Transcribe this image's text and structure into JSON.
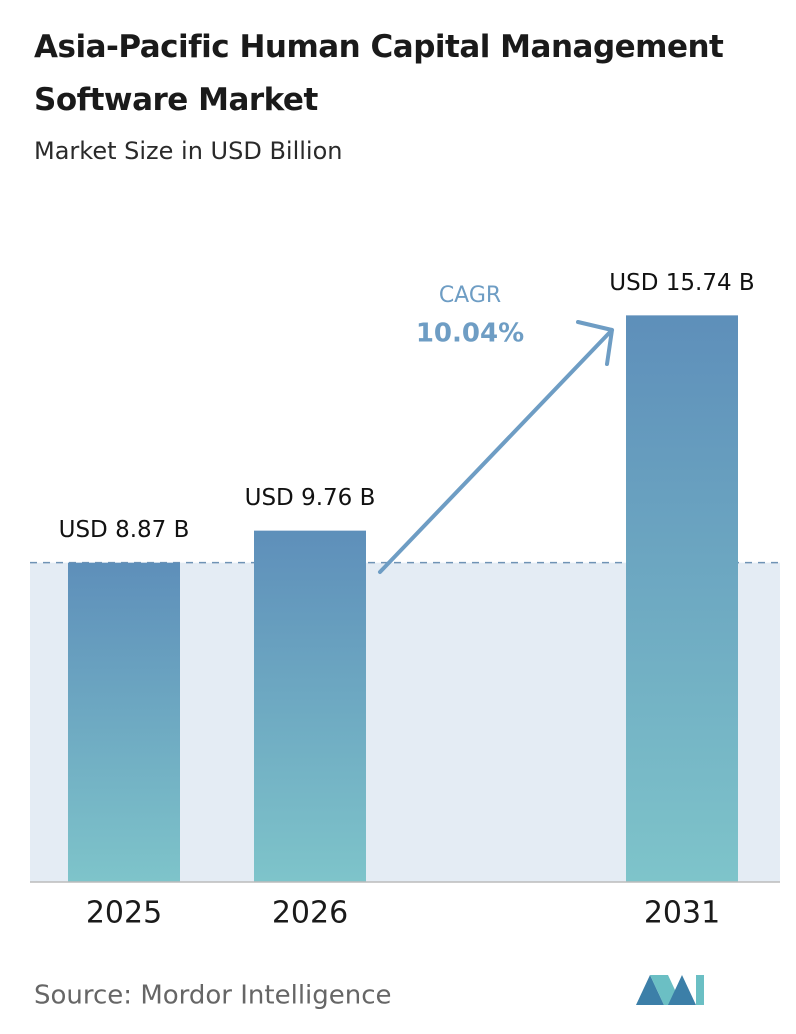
{
  "chart_data": {
    "type": "bar",
    "title": "Asia-Pacific Human Capital Management Software Market",
    "subtitle": "Market Size in USD Billion",
    "categories": [
      "2025",
      "2026",
      "2031"
    ],
    "values": [
      8.87,
      9.76,
      15.74
    ],
    "value_labels": [
      "USD 8.87 B",
      "USD 9.76 B",
      "USD 15.74 B"
    ],
    "ylim": [
      0,
      16
    ],
    "annotation": {
      "label": "CAGR",
      "value_label": "10.04%"
    },
    "source": "Source:  Mordor Intelligence"
  }
}
